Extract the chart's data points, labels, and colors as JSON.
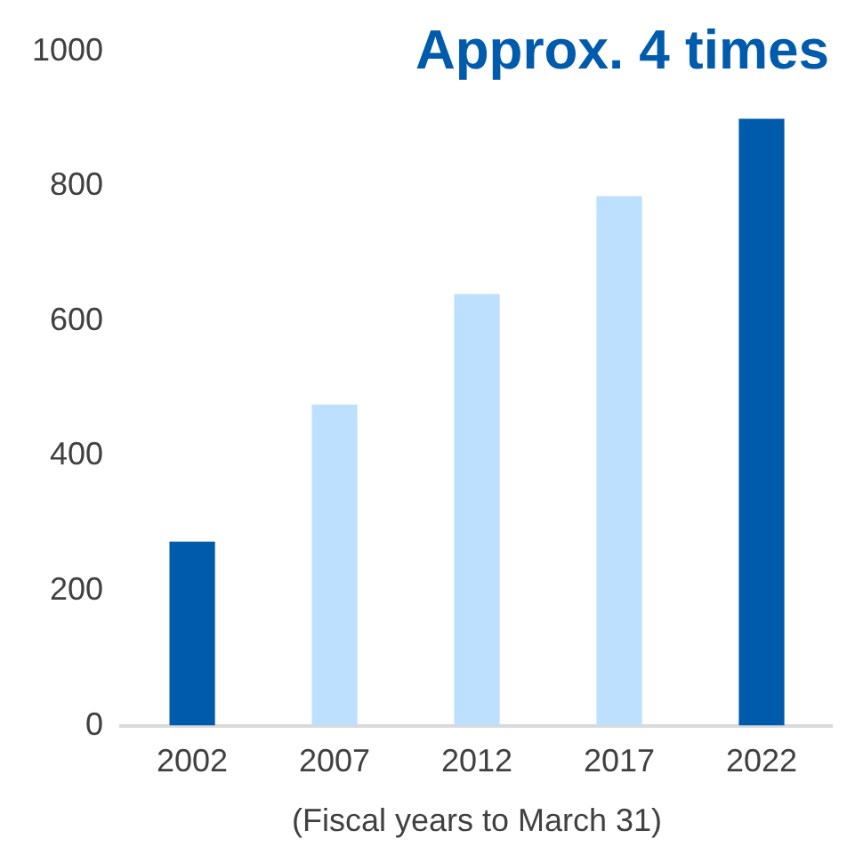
{
  "chart_data": {
    "type": "bar",
    "xlabel": "(Fiscal years to March 31)",
    "categories": [
      "2002",
      "2007",
      "2012",
      "2017",
      "2022"
    ],
    "values": [
      273,
      476,
      640,
      785,
      900
    ],
    "colors": [
      "#005bac",
      "#bde0ff",
      "#bde0ff",
      "#bde0ff",
      "#005bac"
    ],
    "ylim": [
      0,
      1000
    ],
    "yticks": [
      0,
      200,
      400,
      600,
      800,
      1000
    ],
    "grid": false,
    "legend": false,
    "annotations": [
      "Approx. 4 times"
    ]
  }
}
